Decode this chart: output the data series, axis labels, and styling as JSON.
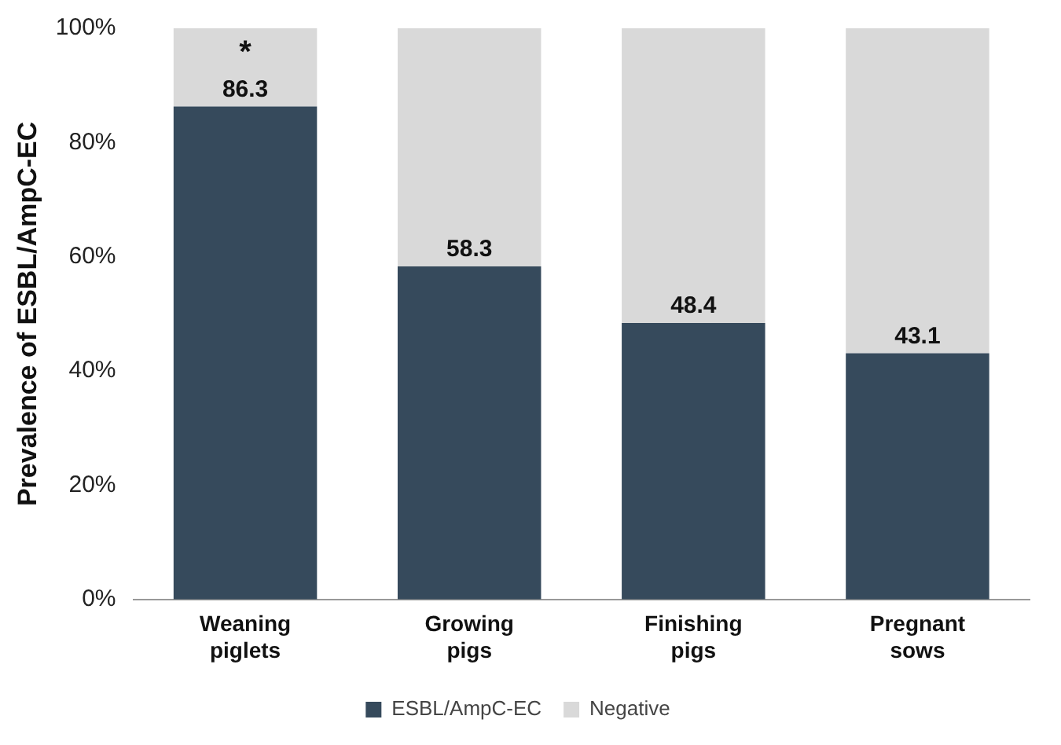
{
  "chart_data": {
    "type": "bar",
    "stacked": true,
    "ylabel": "Prevalence of ESBL/AmpC-EC",
    "categories": [
      "Weaning piglets",
      "Growing pigs",
      "Finishing pigs",
      "Pregnant sows"
    ],
    "series": [
      {
        "name": "ESBL/AmpC-EC",
        "color": "#364a5c",
        "values": [
          86.3,
          58.3,
          48.4,
          43.1
        ],
        "value_labels": [
          "86.3",
          "58.3",
          "48.4",
          "43.1"
        ]
      },
      {
        "name": "Negative",
        "color": "#d9d9d9",
        "values": [
          13.7,
          41.7,
          51.6,
          56.9
        ]
      }
    ],
    "ylim": [
      0,
      100
    ],
    "yticks": [
      {
        "value": 0,
        "label": "0%"
      },
      {
        "value": 20,
        "label": "20%"
      },
      {
        "value": 40,
        "label": "40%"
      },
      {
        "value": 60,
        "label": "60%"
      },
      {
        "value": 80,
        "label": "80%"
      },
      {
        "value": 100,
        "label": "100%"
      }
    ],
    "annotations": [
      {
        "text": "*",
        "x": "Weaning piglets",
        "y": 100
      }
    ],
    "grid": false,
    "legend": "bottom"
  }
}
